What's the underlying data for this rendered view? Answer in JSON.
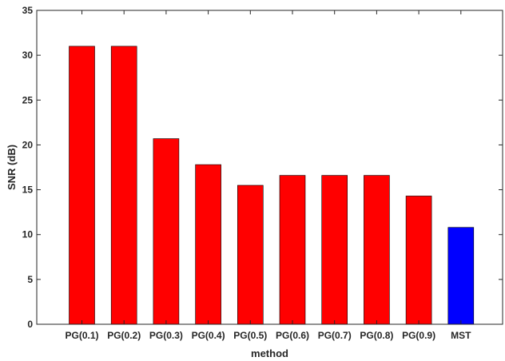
{
  "chart_data": {
    "type": "bar",
    "title": "",
    "xlabel": "method",
    "ylabel": "SNR (dB)",
    "categories": [
      "PG(0.1)",
      "PG(0.2)",
      "PG(0.3)",
      "PG(0.4)",
      "PG(0.5)",
      "PG(0.6)",
      "PG(0.7)",
      "PG(0.8)",
      "PG(0.9)",
      "MST"
    ],
    "values": [
      31.0,
      31.0,
      20.7,
      17.8,
      15.5,
      16.6,
      16.6,
      16.6,
      14.3,
      10.8
    ],
    "bar_colors": [
      "#ff0000",
      "#ff0000",
      "#ff0000",
      "#ff0000",
      "#ff0000",
      "#ff0000",
      "#ff0000",
      "#ff0000",
      "#ff0000",
      "#0000ff"
    ],
    "ylim": [
      0,
      35
    ],
    "yticks": [
      0,
      5,
      10,
      15,
      20,
      25,
      30,
      35
    ],
    "grid": false,
    "legend": false
  }
}
